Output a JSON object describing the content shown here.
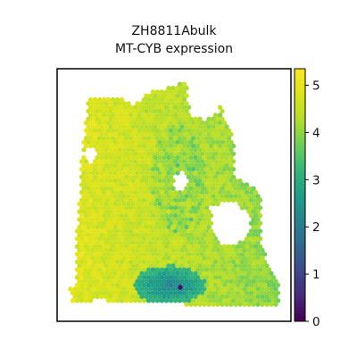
{
  "chart_data": {
    "type": "heatmap",
    "title": "ZH8811Abulk",
    "subtitle": "MT-CYB expression",
    "colormap": "viridis",
    "color_range": [
      0,
      5.35
    ],
    "colorbar_ticks": [
      "0",
      "1",
      "2",
      "3",
      "4",
      "5"
    ],
    "x_ticks_visible": false,
    "y_ticks_visible": false,
    "grid": false,
    "legend": "colorbar-right",
    "predominant_value_range": [
      3.5,
      5.2
    ],
    "low_value_region": "lower-center",
    "low_value_range": [
      1.5,
      3.0
    ],
    "min_spot_value": 0.2
  }
}
